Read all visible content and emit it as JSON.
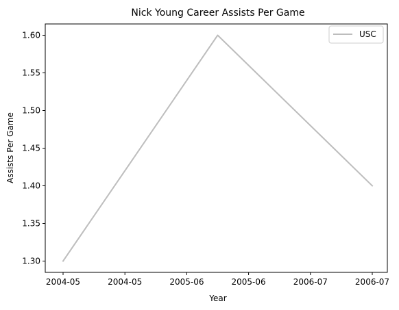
{
  "chart_data": {
    "type": "line",
    "title": "Nick Young  Career Assists Per Game",
    "xlabel": "Year",
    "ylabel": "Assists Per Game",
    "x_tick_labels": [
      "2004-05",
      "2004-05",
      "2005-06",
      "2005-06",
      "2006-07",
      "2006-07"
    ],
    "y_ticks": [
      1.3,
      1.35,
      1.4,
      1.45,
      1.5,
      1.55,
      1.6
    ],
    "ylim": [
      1.285,
      1.615
    ],
    "grid": false,
    "legend_position": "top-right",
    "x": [
      "2004-05",
      "2005-06",
      "2006-07"
    ],
    "series": [
      {
        "name": "USC",
        "values": [
          1.3,
          1.6,
          1.4
        ],
        "color": "#bdbdbd"
      }
    ]
  }
}
